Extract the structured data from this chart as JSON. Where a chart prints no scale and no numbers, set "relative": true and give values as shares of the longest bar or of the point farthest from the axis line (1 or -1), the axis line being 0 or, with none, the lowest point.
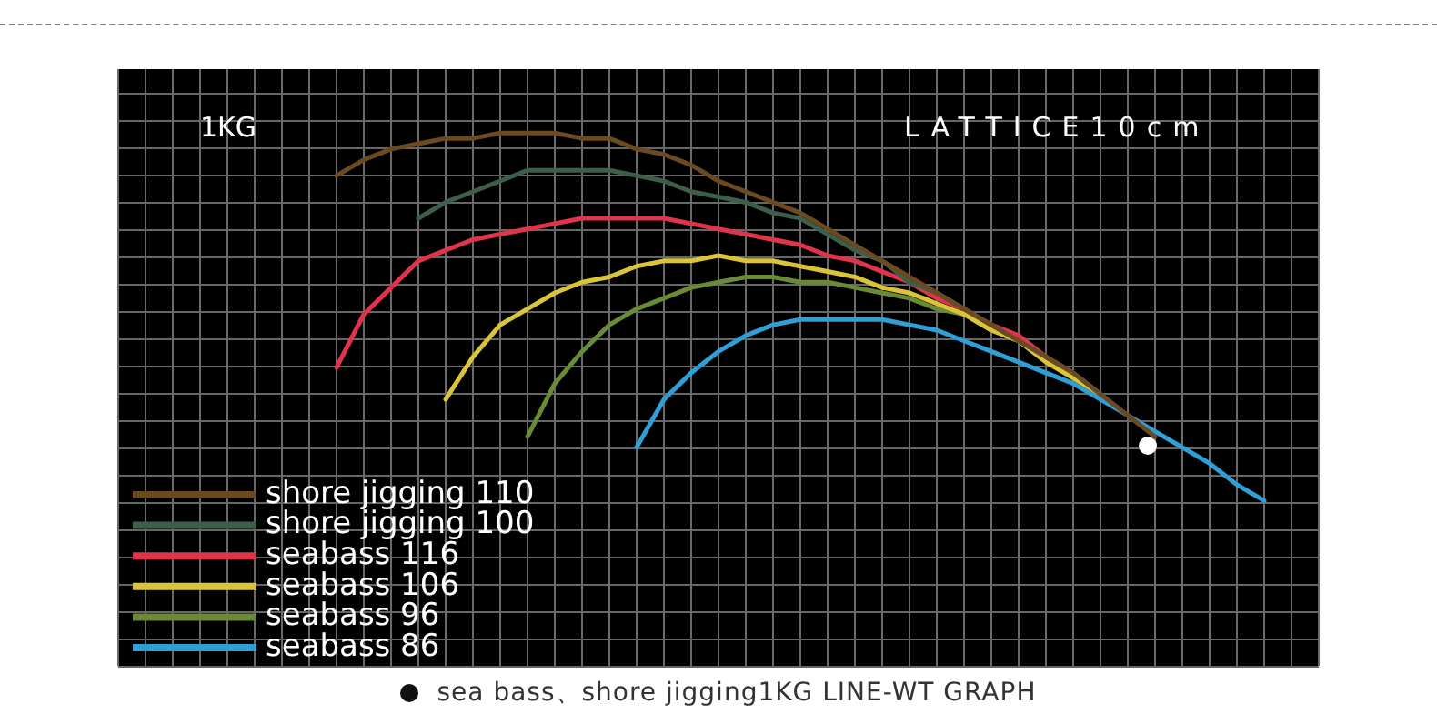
{
  "chart_data": {
    "type": "line",
    "relative": true,
    "annotations": [
      "1KG",
      "LATTICE10cm",
      "sea bass、shore jigging1KG LINE-WT GRAPH"
    ],
    "categories": [
      null,
      null,
      null,
      null,
      null,
      null,
      null,
      null,
      null,
      null,
      null,
      null,
      null,
      null,
      null,
      null,
      null,
      null,
      null,
      null,
      null,
      null,
      null,
      null,
      null,
      null,
      null,
      null,
      null,
      null,
      null,
      null,
      null,
      null,
      null,
      null,
      null,
      null,
      null,
      null,
      null,
      null,
      null,
      null,
      null
    ],
    "grid": true,
    "legend": "bottom left",
    "marker": "none",
    "line_style": "solid",
    "series": [
      {
        "name": "shore jigging 110",
        "color": "#6b4a22",
        "values": [
          null,
          null,
          null,
          null,
          null,
          null,
          null,
          null,
          0.92,
          0.95,
          0.97,
          0.98,
          0.99,
          0.99,
          1,
          1,
          1,
          0.99,
          0.99,
          0.97,
          0.96,
          0.94,
          0.91,
          0.89,
          0.87,
          0.85,
          0.82,
          0.79,
          0.76,
          0.73,
          0.7,
          0.67,
          0.64,
          0.61,
          0.58,
          0.55,
          0.51,
          0.47,
          0.43,
          null,
          null,
          null,
          null,
          null,
          null
        ]
      },
      {
        "name": "shore jigging 100",
        "color": "#3c5e4a",
        "values": [
          null,
          null,
          null,
          null,
          null,
          null,
          null,
          null,
          null,
          null,
          null,
          0.84,
          0.87,
          0.89,
          0.91,
          0.93,
          0.93,
          0.93,
          0.93,
          0.92,
          0.91,
          0.89,
          0.88,
          0.87,
          0.85,
          0.84,
          0.81,
          0.78,
          0.76,
          0.72,
          0.7,
          0.67,
          0.64,
          0.61,
          0.58,
          0.55,
          0.51,
          null,
          null,
          null,
          null,
          null,
          null,
          null,
          null
        ]
      },
      {
        "name": "seabass 116",
        "color": "#e0344a",
        "values": [
          null,
          null,
          null,
          null,
          null,
          null,
          null,
          null,
          0.56,
          0.66,
          0.71,
          0.76,
          0.78,
          0.8,
          0.81,
          0.82,
          0.83,
          0.84,
          0.84,
          0.84,
          0.84,
          0.83,
          0.82,
          0.81,
          0.8,
          0.79,
          0.77,
          0.76,
          0.74,
          0.72,
          0.69,
          0.67,
          0.64,
          0.62,
          0.58,
          0.55,
          null,
          null,
          null,
          null,
          null,
          null,
          null,
          null,
          null
        ]
      },
      {
        "name": "seabass 106",
        "color": "#d9c43a",
        "values": [
          null,
          null,
          null,
          null,
          null,
          null,
          null,
          null,
          null,
          null,
          null,
          null,
          0.5,
          0.58,
          0.64,
          0.67,
          0.7,
          0.72,
          0.73,
          0.75,
          0.76,
          0.76,
          0.77,
          0.76,
          0.76,
          0.75,
          0.74,
          0.73,
          0.71,
          0.7,
          0.68,
          0.66,
          0.63,
          0.61,
          0.57,
          0.54,
          0.51,
          null,
          null,
          null,
          null,
          null,
          null,
          null,
          null
        ]
      },
      {
        "name": "seabass 96",
        "color": "#6b8a35",
        "values": [
          null,
          null,
          null,
          null,
          null,
          null,
          null,
          null,
          null,
          null,
          null,
          null,
          null,
          null,
          null,
          0.43,
          0.53,
          0.59,
          0.64,
          0.67,
          0.69,
          0.71,
          0.72,
          0.73,
          0.73,
          0.72,
          0.72,
          0.71,
          0.7,
          0.69,
          0.67,
          0.66,
          0.63,
          0.61,
          0.58,
          0.54,
          0.51,
          null,
          null,
          null,
          null,
          null,
          null,
          null,
          null
        ]
      },
      {
        "name": "seabass 86",
        "color": "#2f9fd6",
        "values": [
          null,
          null,
          null,
          null,
          null,
          null,
          null,
          null,
          null,
          null,
          null,
          null,
          null,
          null,
          null,
          null,
          null,
          null,
          null,
          0.41,
          0.5,
          0.55,
          0.59,
          0.62,
          0.64,
          0.65,
          0.65,
          0.65,
          0.65,
          0.64,
          0.63,
          0.61,
          0.59,
          0.57,
          0.55,
          0.53,
          0.5,
          0.47,
          0.44,
          0.41,
          0.38,
          0.34,
          0.31,
          null,
          null
        ]
      }
    ]
  }
}
